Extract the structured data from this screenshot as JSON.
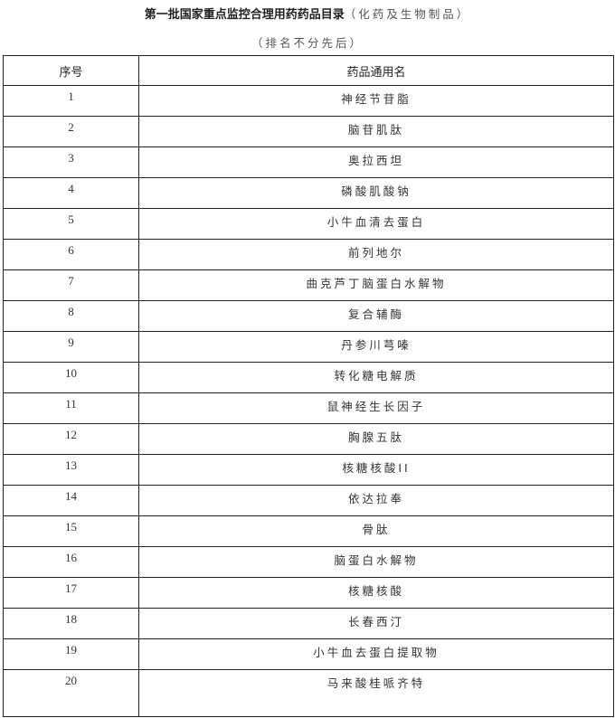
{
  "title": {
    "main": "第一批国家重点监控合理用药药品目录",
    "category": "（化药及生物制品）"
  },
  "subtitle": "（排名不分先后）",
  "table": {
    "headers": [
      "序号",
      "药品通用名"
    ],
    "rows": [
      [
        "1",
        "神经节苷脂"
      ],
      [
        "2",
        "脑苷肌肽"
      ],
      [
        "3",
        "奥拉西坦"
      ],
      [
        "4",
        "磷酸肌酸钠"
      ],
      [
        "5",
        "小牛血清去蛋白"
      ],
      [
        "6",
        "前列地尔"
      ],
      [
        "7",
        "曲克芦丁脑蛋白水解物"
      ],
      [
        "8",
        "复合辅酶"
      ],
      [
        "9",
        "丹参川芎嗪"
      ],
      [
        "10",
        "转化糖电解质"
      ],
      [
        "11",
        "鼠神经生长因子"
      ],
      [
        "12",
        "胸腺五肽"
      ],
      [
        "13",
        "核糖核酸II"
      ],
      [
        "14",
        "依达拉奉"
      ],
      [
        "15",
        "骨肽"
      ],
      [
        "16",
        "脑蛋白水解物"
      ],
      [
        "17",
        "核糖核酸"
      ],
      [
        "18",
        "长春西汀"
      ],
      [
        "19",
        "小牛血去蛋白提取物"
      ],
      [
        "20",
        "马来酸桂哌齐特"
      ]
    ]
  }
}
